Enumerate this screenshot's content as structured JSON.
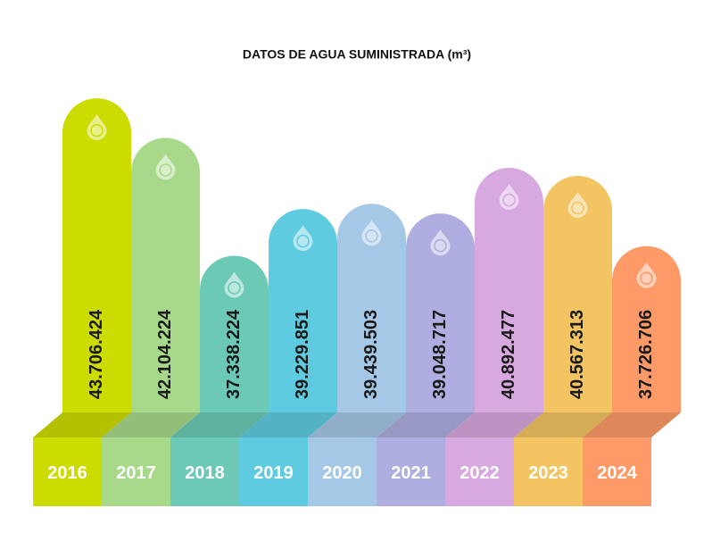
{
  "chart_data": {
    "type": "bar",
    "title": "DATOS DE AGUA SUMINISTRADA (m³)",
    "categories": [
      "2016",
      "2017",
      "2018",
      "2019",
      "2020",
      "2021",
      "2022",
      "2023",
      "2024"
    ],
    "values": [
      43706424,
      42104224,
      37338224,
      39229851,
      39439503,
      39048717,
      40892477,
      40567313,
      37726706
    ],
    "value_labels": [
      "43.706.424",
      "42.104.224",
      "37.338.224",
      "39.229.851",
      "39.439.503",
      "39.048.717",
      "40.892.477",
      "40.567.313",
      "37.726.706"
    ],
    "colors": [
      "#cddc00",
      "#a8d98b",
      "#6cc9b5",
      "#5fcbe0",
      "#a5c8e6",
      "#aeaee0",
      "#d8a8e0",
      "#f2c462",
      "#fd9a68"
    ],
    "ylim": [
      31000000,
      44000000
    ]
  }
}
